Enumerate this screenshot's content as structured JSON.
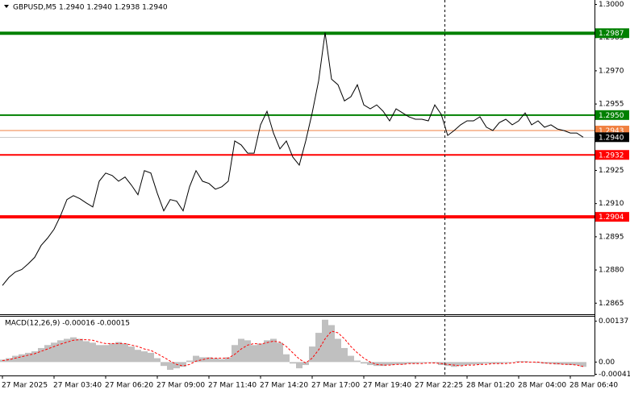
{
  "chart_data": [
    {
      "type": "line",
      "title": "GBPUSD,M5  1.2940 1.2940 1.2938 1.2940",
      "categories": [
        "27 Mar 2025",
        null,
        null,
        null,
        null,
        null,
        null,
        null,
        "27 Mar 03:40",
        null,
        null,
        null,
        null,
        null,
        null,
        null,
        "27 Mar 06:20",
        null,
        null,
        null,
        null,
        null,
        null,
        null,
        "27 Mar 09:00",
        null,
        null,
        null,
        null,
        null,
        null,
        null,
        "27 Mar 11:40",
        null,
        null,
        null,
        null,
        null,
        null,
        null,
        "27 Mar 14:20",
        null,
        null,
        null,
        null,
        null,
        null,
        null,
        "27 Mar 17:00",
        null,
        null,
        null,
        null,
        null,
        null,
        null,
        "27 Mar 19:40",
        null,
        null,
        null,
        null,
        null,
        null,
        null,
        "27 Mar 22:25",
        null,
        null,
        null,
        null,
        null,
        null,
        null,
        "28 Mar 01:20",
        null,
        null,
        null,
        null,
        null,
        null,
        null,
        "28 Mar 04:00",
        null,
        null,
        null,
        null,
        null,
        null,
        null,
        "28 Mar 06:40",
        null,
        null
      ],
      "series": [
        {
          "color": "#000000",
          "values": [
            1.2873,
            1.28766,
            1.28791,
            1.28802,
            1.28828,
            1.28857,
            1.28911,
            1.28944,
            1.28984,
            1.29045,
            1.29118,
            1.29136,
            1.29122,
            1.29103,
            1.29085,
            1.29201,
            1.29238,
            1.29227,
            1.29201,
            1.2922,
            1.29183,
            1.2914,
            1.29249,
            1.29238,
            1.29147,
            1.29067,
            1.29118,
            1.29111,
            1.29067,
            1.29176,
            1.29249,
            1.29201,
            1.29191,
            1.29165,
            1.29176,
            1.29201,
            1.29383,
            1.29365,
            1.29328,
            1.29328,
            1.29456,
            1.29517,
            1.29419,
            1.29347,
            1.29383,
            1.2931,
            1.29274,
            1.29383,
            1.2951,
            1.29655,
            1.29873,
            1.29662,
            1.29637,
            1.29564,
            1.29583,
            1.29637,
            1.29546,
            1.29528,
            1.29546,
            1.29517,
            1.29474,
            1.29528,
            1.2951,
            1.29492,
            1.29481,
            1.29481,
            1.29474,
            1.29546,
            1.29503,
            1.29408,
            1.2943,
            1.29456,
            1.29474,
            1.29474,
            1.29492,
            1.29445,
            1.2943,
            1.29466,
            1.29481,
            1.29456,
            1.29474,
            1.2951,
            1.29456,
            1.29474,
            1.29445,
            1.29456,
            1.29437,
            1.2943,
            1.29419,
            1.29419,
            1.294
          ]
        }
      ],
      "ylim": [
        1.286,
        1.3002
      ],
      "yticks": [
        {
          "value": 1.3,
          "label": "1.3000"
        },
        1.2985,
        {
          "value": 1.297,
          "label": "1.2970"
        },
        1.2955,
        1.2925,
        {
          "value": 1.291,
          "label": "1.2910"
        },
        1.2895,
        {
          "value": 1.288,
          "label": "1.2880"
        },
        1.2865
      ],
      "levels": [
        {
          "value": 1.2987,
          "color": "#008000",
          "style": "thick"
        },
        {
          "value": 1.295,
          "label": "1.2950",
          "color": "#008000",
          "style": "medium"
        },
        {
          "value": 1.2943,
          "color": "#f08040",
          "style": "thin"
        },
        {
          "value": 1.294,
          "label": "1.2940",
          "color": "#000000",
          "style": "faint"
        },
        {
          "value": 1.2932,
          "color": "#ff0000",
          "style": "medium"
        },
        {
          "value": 1.2904,
          "color": "#ff0000",
          "style": "thick"
        }
      ]
    },
    {
      "type": "macd",
      "title": "MACD(12,26,9) -0.00016 -0.00015",
      "series": [
        {
          "color": "#c0c0c0",
          "values": [
            8e-05,
            0.00013,
            0.00021,
            0.00026,
            0.00031,
            0.00036,
            0.00047,
            0.00057,
            0.00065,
            0.00073,
            0.00078,
            0.00083,
            0.00078,
            0.0007,
            0.00065,
            0.00057,
            0.00057,
            0.00062,
            0.00067,
            0.00062,
            0.00052,
            0.00041,
            0.00036,
            0.00031,
            0.00013,
            -0.00013,
            -0.00026,
            -0.00021,
            -0.00016,
            5e-05,
            0.00021,
            0.00016,
            0.00016,
            0.00013,
            0.0001,
            0.00016,
            0.00057,
            0.00078,
            0.00073,
            0.00057,
            0.00062,
            0.00073,
            0.00078,
            0.00065,
            0.00026,
            -5e-05,
            -0.00021,
            -0.0001,
            0.00052,
            0.00098,
            0.00142,
            0.00124,
            0.00078,
            0.00047,
            0.00021,
            5e-05,
            -5e-05,
            -0.0001,
            -0.00013,
            -0.00013,
            -0.0001,
            -8e-05,
            -8e-05,
            -5e-05,
            -5e-05,
            -3e-05,
            0,
            -3e-05,
            -0.0001,
            -0.00013,
            -0.00016,
            -0.00013,
            -0.0001,
            -8e-05,
            -8e-05,
            -5e-05,
            -5e-05,
            -5e-05,
            -3e-05,
            0,
            3e-05,
            3e-05,
            0,
            -3e-05,
            -5e-05,
            -5e-05,
            -8e-05,
            -8e-05,
            -0.0001,
            -0.0001,
            -0.00016
          ]
        },
        {
          "color": "#ff0000",
          "dashed": true,
          "values": [
            5e-05,
            8e-05,
            0.00013,
            0.00018,
            0.00023,
            0.00028,
            0.00036,
            0.00044,
            0.00052,
            0.0006,
            0.00067,
            0.00073,
            0.00075,
            0.00075,
            0.00073,
            0.00067,
            0.00062,
            0.00062,
            0.00062,
            0.00062,
            0.00057,
            0.00052,
            0.00044,
            0.00039,
            0.00028,
            0.00016,
            3e-05,
            -8e-05,
            -0.00013,
            -8e-05,
            3e-05,
            8e-05,
            0.00013,
            0.00013,
            0.00013,
            0.00013,
            0.00026,
            0.00044,
            0.00057,
            0.00062,
            0.0006,
            0.00065,
            0.0007,
            0.00067,
            0.00052,
            0.00031,
            0.0001,
            -3e-05,
            0.00013,
            0.00041,
            0.00078,
            0.00104,
            0.00098,
            0.00078,
            0.00052,
            0.00031,
            0.00013,
            0,
            -8e-05,
            -0.0001,
            -0.0001,
            -8e-05,
            -8e-05,
            -5e-05,
            -5e-05,
            -5e-05,
            -3e-05,
            -3e-05,
            -5e-05,
            -8e-05,
            -0.0001,
            -0.00013,
            -0.0001,
            -0.0001,
            -8e-05,
            -8e-05,
            -5e-05,
            -5e-05,
            -5e-05,
            -3e-05,
            0,
            0,
            0,
            0,
            -3e-05,
            -5e-05,
            -5e-05,
            -8e-05,
            -8e-05,
            -0.0001,
            -0.00015
          ]
        }
      ],
      "ylim": [
        -0.00045,
        0.00155
      ],
      "yticks": [
        0.00137,
        {
          "value": 0,
          "label": "0.00"
        },
        -0.00041
      ]
    }
  ]
}
